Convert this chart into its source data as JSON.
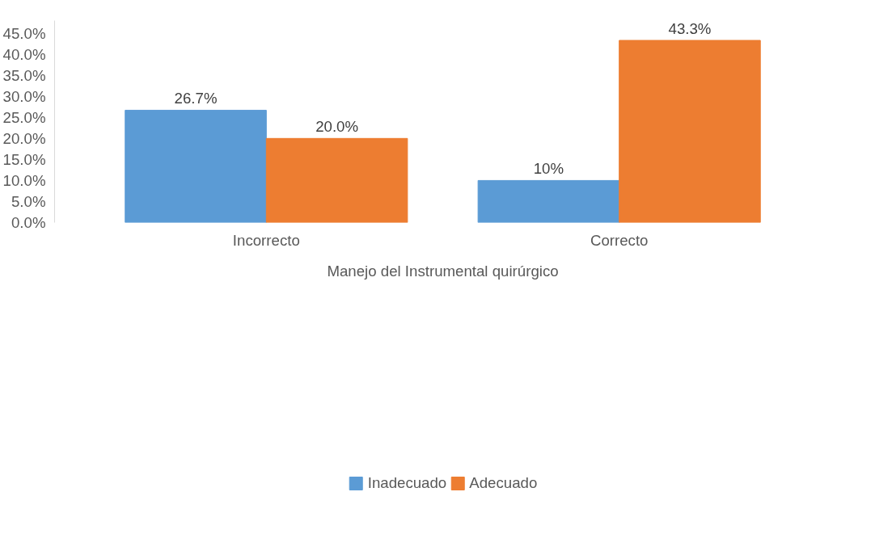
{
  "chart_data": {
    "type": "bar",
    "xlabel": "Manejo del Instrumental quirúrgico",
    "categories": [
      "Incorrecto",
      "Correcto"
    ],
    "series": [
      {
        "name": "Inadecuado",
        "color": "#5b9bd5",
        "values": [
          26.7,
          10
        ],
        "value_labels": [
          "26.7%",
          "10%"
        ]
      },
      {
        "name": "Adecuado",
        "color": "#ed7d31",
        "values": [
          20.0,
          43.3
        ],
        "value_labels": [
          "20.0%",
          "43.3%"
        ]
      }
    ],
    "ylim": [
      0,
      48
    ],
    "yticks": [
      {
        "value": 0,
        "label": "0.0%"
      },
      {
        "value": 5,
        "label": "5.0%"
      },
      {
        "value": 10,
        "label": "10.0%"
      },
      {
        "value": 15,
        "label": "15.0%"
      },
      {
        "value": 20,
        "label": "20.0%"
      },
      {
        "value": 25,
        "label": "25.0%"
      },
      {
        "value": 30,
        "label": "30.0%"
      },
      {
        "value": 35,
        "label": "35.0%"
      },
      {
        "value": 40,
        "label": "40.0%"
      },
      {
        "value": 45,
        "label": "45.0%"
      }
    ],
    "grid": false,
    "legend": "bottom"
  }
}
